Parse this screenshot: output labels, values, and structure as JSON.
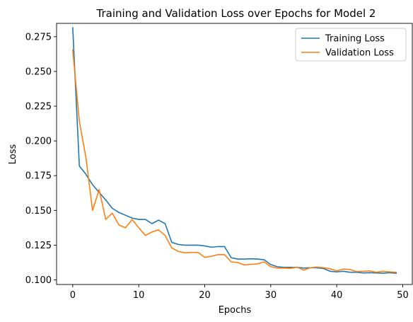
{
  "chart_data": {
    "type": "line",
    "title": "Training and Validation Loss over Epochs for Model 2",
    "xlabel": "Epochs",
    "ylabel": "Loss",
    "xlim": [
      -2.45,
      51.45
    ],
    "ylim": [
      0.0967,
      0.2846
    ],
    "xticks": [
      0,
      10,
      20,
      30,
      40,
      50
    ],
    "xtick_labels": [
      "0",
      "10",
      "20",
      "30",
      "40",
      "50"
    ],
    "yticks": [
      0.1,
      0.125,
      0.15,
      0.175,
      0.2,
      0.225,
      0.25,
      0.275
    ],
    "ytick_labels": [
      "0.100",
      "0.125",
      "0.150",
      "0.175",
      "0.200",
      "0.225",
      "0.250",
      "0.275"
    ],
    "grid": false,
    "legend_position": "top-right",
    "series": [
      {
        "name": "Training Loss",
        "color": "#1f77b4",
        "x": [
          0,
          1,
          2,
          3,
          4,
          5,
          6,
          7,
          8,
          9,
          10,
          11,
          12,
          13,
          14,
          15,
          16,
          17,
          18,
          19,
          20,
          21,
          22,
          23,
          24,
          25,
          26,
          27,
          28,
          29,
          30,
          31,
          32,
          33,
          34,
          35,
          36,
          37,
          38,
          39,
          40,
          41,
          42,
          43,
          44,
          45,
          46,
          47,
          48,
          49
        ],
        "values": [
          0.2815,
          0.182,
          0.176,
          0.1685,
          0.163,
          0.1575,
          0.1515,
          0.1485,
          0.1465,
          0.1445,
          0.1435,
          0.1435,
          0.1405,
          0.143,
          0.1405,
          0.127,
          0.1255,
          0.125,
          0.125,
          0.125,
          0.1245,
          0.1235,
          0.124,
          0.124,
          0.116,
          0.115,
          0.115,
          0.1152,
          0.115,
          0.1145,
          0.111,
          0.1095,
          0.109,
          0.109,
          0.109,
          0.1085,
          0.1088,
          0.1087,
          0.1082,
          0.1062,
          0.1058,
          0.1062,
          0.1055,
          0.1055,
          0.105,
          0.1052,
          0.105,
          0.1048,
          0.1052,
          0.1048
        ]
      },
      {
        "name": "Validation Loss",
        "color": "#ff7f0e",
        "x": [
          0,
          1,
          2,
          3,
          4,
          5,
          6,
          7,
          8,
          9,
          10,
          11,
          12,
          13,
          14,
          15,
          16,
          17,
          18,
          19,
          20,
          21,
          22,
          23,
          24,
          25,
          26,
          27,
          28,
          29,
          30,
          31,
          32,
          33,
          34,
          35,
          36,
          37,
          38,
          39,
          40,
          41,
          42,
          43,
          44,
          45,
          46,
          47,
          48,
          49
        ],
        "values": [
          0.2655,
          0.214,
          0.188,
          0.15,
          0.165,
          0.1435,
          0.148,
          0.1395,
          0.1375,
          0.1435,
          0.1375,
          0.132,
          0.1345,
          0.136,
          0.132,
          0.123,
          0.1205,
          0.1195,
          0.1198,
          0.1198,
          0.1162,
          0.117,
          0.1182,
          0.1182,
          0.113,
          0.1125,
          0.1108,
          0.1112,
          0.1115,
          0.113,
          0.1095,
          0.1085,
          0.1085,
          0.1083,
          0.1092,
          0.107,
          0.1088,
          0.1092,
          0.1088,
          0.108,
          0.1065,
          0.1078,
          0.1075,
          0.106,
          0.1062,
          0.1065,
          0.1055,
          0.1062,
          0.1058,
          0.1055
        ]
      }
    ]
  }
}
